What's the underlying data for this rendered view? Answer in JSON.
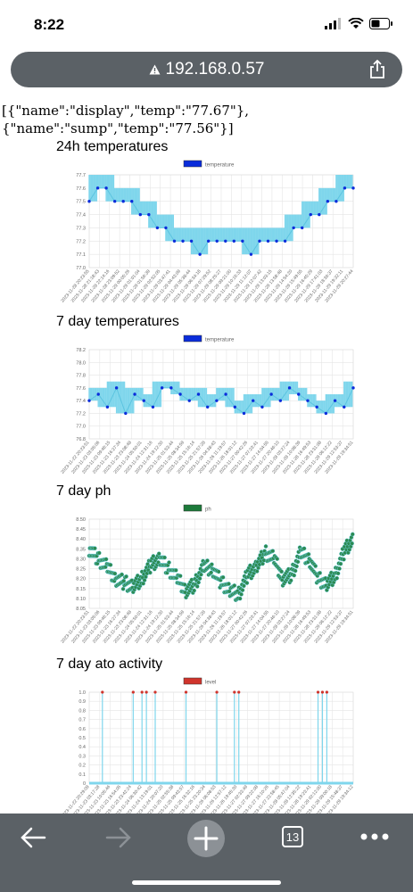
{
  "status": {
    "time": "8:22",
    "icons": [
      "signal-icon",
      "wifi-icon",
      "battery-icon"
    ]
  },
  "browser": {
    "url": "192.168.0.57",
    "tab_count": "13"
  },
  "page": {
    "json_line1": "[{\"name\":\"display\",\"temp\":\"77.67\"},",
    "json_line2": "{\"name\":\"sump\",\"temp\":\"77.56\"}]"
  },
  "charts": [
    {
      "title": "24h temperatures",
      "legend": "temperature",
      "type": "line",
      "color": "#0a2cdb",
      "ylim": [
        77.0,
        77.7
      ],
      "yticks": [
        "77.7",
        "77.6",
        "77.5",
        "77.4",
        "77.3",
        "77.2",
        "77.1",
        "77.0"
      ],
      "xticks": [
        "2023-11-28 20:23:55",
        "2023-11-28 21:18:43",
        "2023-11-28 22:14:16",
        "2023-11-28 23:09:52",
        "2023-11-29 00:05:26",
        "2023-11-29 01:01:04",
        "2023-11-29 01:56:39",
        "2023-11-29 02:52:05",
        "2023-11-29 03:47:41",
        "2023-11-29 04:43:09",
        "2023-11-29 05:38:44",
        "2023-11-29 06:34:18",
        "2023-11-29 07:29:52",
        "2023-11-29 08:25:27",
        "2023-11-29 09:21:00",
        "2023-11-29 10:16:33",
        "2023-11-29 11:12:07",
        "2023-11-29 12:07:42",
        "2023-11-29 13:03:15",
        "2023-11-29 13:58:48",
        "2023-11-29 14:54:20",
        "2023-11-29 15:49:55",
        "2023-11-29 16:45:29",
        "2023-11-29 17:41:03",
        "2023-11-29 18:36:37",
        "2023-11-29 19:32:11",
        "2023-11-29 20:27:44"
      ]
    },
    {
      "title": "7 day temperatures",
      "legend": "temperature",
      "type": "line",
      "color": "#0a2cdb",
      "ylim": [
        76.8,
        78.2
      ],
      "yticks": [
        "78.2",
        "78.0",
        "77.8",
        "77.6",
        "77.4",
        "77.2",
        "77.0",
        "76.8"
      ],
      "xticks": [
        "2023-11-22 20:23:51",
        "2023-11-23 03:05:06",
        "2023-11-23 09:46:15",
        "2023-11-23 16:27:34",
        "2023-11-23 23:08:48",
        "2023-11-24 05:50:01",
        "2023-11-24 12:31:16",
        "2023-11-24 19:12:30",
        "2023-11-25 01:53:44",
        "2023-11-25 08:34:59",
        "2023-11-25 15:16:14",
        "2023-11-25 21:57:28",
        "2023-11-26 04:38:43",
        "2023-11-26 11:19:57",
        "2023-11-26 18:01:12",
        "2023-11-27 00:42:26",
        "2023-11-27 07:23:41",
        "2023-11-27 14:04:55",
        "2023-11-27 20:46:10",
        "2023-11-28 03:27:24",
        "2023-11-28 10:08:39",
        "2023-11-28 16:49:53",
        "2023-11-28 23:31:08",
        "2023-11-29 06:12:22",
        "2023-11-29 12:53:37",
        "2023-11-29 19:34:51"
      ]
    },
    {
      "title": "7 day ph",
      "legend": "ph",
      "type": "scatter",
      "color": "#1c7a3a",
      "ylim": [
        8.05,
        8.5
      ],
      "yticks": [
        "8.50",
        "8.45",
        "8.40",
        "8.35",
        "8.30",
        "8.25",
        "8.20",
        "8.15",
        "8.10",
        "8.05"
      ],
      "xticks": [
        "2023-11-22 20:23:51",
        "2023-11-23 03:05:06",
        "2023-11-23 09:46:15",
        "2023-11-23 16:27:34",
        "2023-11-23 23:08:48",
        "2023-11-24 05:50:01",
        "2023-11-24 12:31:16",
        "2023-11-24 19:12:30",
        "2023-11-25 01:53:44",
        "2023-11-25 08:34:59",
        "2023-11-25 15:16:14",
        "2023-11-25 21:57:28",
        "2023-11-26 04:38:43",
        "2023-11-26 11:19:57",
        "2023-11-26 18:01:12",
        "2023-11-27 00:42:26",
        "2023-11-27 07:23:41",
        "2023-11-27 14:04:55",
        "2023-11-27 20:46:10",
        "2023-11-28 03:27:24",
        "2023-11-28 10:08:39",
        "2023-11-28 16:49:53",
        "2023-11-28 23:31:08",
        "2023-11-29 06:12:22",
        "2023-11-29 12:53:37",
        "2023-11-29 19:34:51"
      ]
    },
    {
      "title": "7 day ato activity",
      "legend": "level",
      "type": "line",
      "color": "#d0342c",
      "ylim": [
        0,
        1.0
      ],
      "yticks": [
        "1.0",
        "0.9",
        "0.8",
        "0.7",
        "0.6",
        "0.5",
        "0.4",
        "0.3",
        "0.2",
        "0.1",
        "0"
      ],
      "xticks": [
        "2023-11-22 20:29:09",
        "2023-11-23 03:17:28",
        "2023-11-23 10:05:46",
        "2023-11-23 16:54:05",
        "2023-11-23 23:42:24",
        "2023-11-24 06:30:42",
        "2023-11-24 13:19:01",
        "2023-11-24 20:07:20",
        "2023-11-25 02:55:38",
        "2023-11-25 09:43:57",
        "2023-11-25 16:32:16",
        "2023-11-25 23:20:34",
        "2023-11-26 06:08:53",
        "2023-11-26 12:57:12",
        "2023-11-26 19:45:30",
        "2023-11-27 02:33:49",
        "2023-11-27 09:22:08",
        "2023-11-27 16:10:26",
        "2023-11-27 22:58:45",
        "2023-11-28 05:47:04",
        "2023-11-28 12:35:22",
        "2023-11-28 19:23:41",
        "2023-11-29 02:12:00",
        "2023-11-29 09:00:18",
        "2023-11-29 15:48:37",
        "2023-11-29 19:34:12"
      ]
    }
  ],
  "chart_data": [
    {
      "type": "line",
      "title": "24h temperatures",
      "series": [
        {
          "name": "temperature",
          "values": [
            77.5,
            77.6,
            77.6,
            77.5,
            77.5,
            77.5,
            77.4,
            77.4,
            77.3,
            77.3,
            77.2,
            77.2,
            77.2,
            77.1,
            77.2,
            77.2,
            77.2,
            77.2,
            77.2,
            77.1,
            77.2,
            77.2,
            77.2,
            77.2,
            77.3,
            77.3,
            77.4,
            77.4,
            77.5,
            77.5,
            77.6,
            77.6
          ]
        }
      ],
      "ylim": [
        77.0,
        77.7
      ]
    },
    {
      "type": "line",
      "title": "7 day temperatures",
      "series": [
        {
          "name": "temperature",
          "values": [
            77.4,
            77.5,
            77.3,
            77.6,
            77.2,
            77.5,
            77.4,
            77.3,
            77.6,
            77.6,
            77.5,
            77.4,
            77.5,
            77.3,
            77.4,
            77.5,
            77.3,
            77.2,
            77.4,
            77.3,
            77.5,
            77.4,
            77.6,
            77.5,
            77.4,
            77.3,
            77.2,
            77.4,
            77.3,
            77.6
          ]
        }
      ],
      "ylim": [
        76.8,
        78.2
      ]
    },
    {
      "type": "scatter",
      "title": "7 day ph",
      "series": [
        {
          "name": "ph",
          "values": [
            8.35,
            8.3,
            8.26,
            8.2,
            8.18,
            8.16,
            8.2,
            8.27,
            8.3,
            8.25,
            8.2,
            8.14,
            8.17,
            8.26,
            8.25,
            8.18,
            8.14,
            8.12,
            8.22,
            8.26,
            8.33,
            8.3,
            8.2,
            8.22,
            8.33,
            8.3,
            8.2,
            8.17,
            8.22,
            8.34,
            8.4
          ]
        }
      ],
      "ylim": [
        8.05,
        8.5
      ]
    },
    {
      "type": "line",
      "title": "7 day ato activity",
      "series": [
        {
          "name": "level",
          "spikes_at": [
            3,
            10,
            12,
            13,
            15,
            22,
            29,
            33,
            34,
            52,
            53,
            54
          ]
        }
      ],
      "ylim": [
        0,
        1.0
      ]
    }
  ]
}
